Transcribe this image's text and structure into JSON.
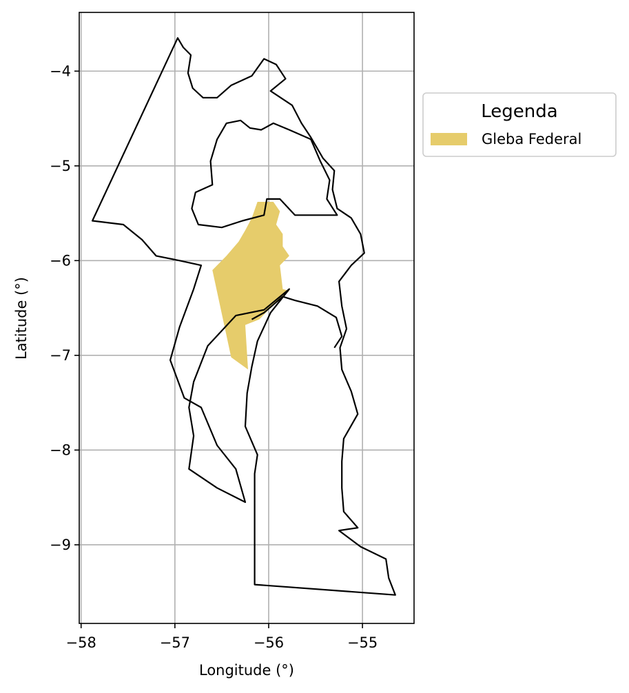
{
  "chart_data": {
    "type": "map",
    "xlabel": "Longitude (°)",
    "ylabel": "Latitude (°)",
    "xlim": [
      -58.02,
      -54.45
    ],
    "ylim": [
      -9.83,
      -3.38
    ],
    "x_ticks": [
      {
        "value": -58,
        "label": "−58"
      },
      {
        "value": -57,
        "label": "−57"
      },
      {
        "value": -56,
        "label": "−56"
      },
      {
        "value": -55,
        "label": "−55"
      }
    ],
    "y_ticks": [
      {
        "value": -4,
        "label": "−4"
      },
      {
        "value": -5,
        "label": "−5"
      },
      {
        "value": -6,
        "label": "−6"
      },
      {
        "value": -7,
        "label": "−7"
      },
      {
        "value": -8,
        "label": "−8"
      },
      {
        "value": -9,
        "label": "−9"
      }
    ],
    "grid": true,
    "legend": {
      "title": "Legenda",
      "placement": "outside-right-top",
      "entries": [
        {
          "label": "Gleba Federal",
          "color": "#e6cc6b"
        }
      ]
    },
    "layers": [
      {
        "name": "municipal boundaries",
        "color": "#000000",
        "polygons": [
          [
            [
              -56.97,
              -3.65
            ],
            [
              -56.91,
              -3.75
            ],
            [
              -56.83,
              -3.83
            ],
            [
              -56.86,
              -4.02
            ],
            [
              -56.81,
              -4.18
            ],
            [
              -56.7,
              -4.28
            ],
            [
              -56.55,
              -4.28
            ],
            [
              -56.4,
              -4.15
            ],
            [
              -56.18,
              -4.05
            ],
            [
              -56.05,
              -3.87
            ],
            [
              -55.92,
              -3.93
            ],
            [
              -55.82,
              -4.08
            ],
            [
              -55.98,
              -4.21
            ],
            [
              -55.75,
              -4.36
            ],
            [
              -55.65,
              -4.55
            ],
            [
              -55.55,
              -4.7
            ],
            [
              -55.42,
              -4.92
            ],
            [
              -55.3,
              -5.05
            ],
            [
              -55.32,
              -5.25
            ],
            [
              -55.27,
              -5.45
            ],
            [
              -55.12,
              -5.55
            ],
            [
              -55.02,
              -5.72
            ],
            [
              -54.98,
              -5.92
            ],
            [
              -55.12,
              -6.05
            ],
            [
              -55.25,
              -6.22
            ],
            [
              -55.22,
              -6.48
            ],
            [
              -55.17,
              -6.72
            ],
            [
              -55.24,
              -6.92
            ],
            [
              -55.22,
              -7.15
            ],
            [
              -55.12,
              -7.38
            ],
            [
              -55.05,
              -7.62
            ],
            [
              -55.2,
              -7.88
            ],
            [
              -55.22,
              -8.12
            ],
            [
              -55.22,
              -8.4
            ],
            [
              -55.2,
              -8.65
            ],
            [
              -55.05,
              -8.82
            ],
            [
              -55.25,
              -8.85
            ],
            [
              -55.02,
              -9.02
            ],
            [
              -54.75,
              -9.15
            ],
            [
              -54.72,
              -9.35
            ],
            [
              -54.65,
              -9.53
            ],
            [
              -56.15,
              -9.42
            ],
            [
              -56.15,
              -8.25
            ],
            [
              -56.12,
              -8.05
            ],
            [
              -56.25,
              -7.75
            ],
            [
              -56.23,
              -7.4
            ],
            [
              -56.18,
              -7.12
            ],
            [
              -56.12,
              -6.85
            ],
            [
              -55.98,
              -6.55
            ],
            [
              -55.78,
              -6.3
            ],
            [
              -56.05,
              -6.52
            ],
            [
              -56.35,
              -6.58
            ],
            [
              -56.65,
              -6.9
            ],
            [
              -56.8,
              -7.28
            ],
            [
              -56.85,
              -7.55
            ],
            [
              -56.8,
              -7.85
            ],
            [
              -56.85,
              -8.2
            ],
            [
              -56.55,
              -8.4
            ],
            [
              -56.25,
              -8.55
            ],
            [
              -56.35,
              -8.2
            ],
            [
              -56.55,
              -7.95
            ],
            [
              -56.72,
              -7.55
            ],
            [
              -56.9,
              -7.45
            ],
            [
              -57.05,
              -7.05
            ],
            [
              -56.95,
              -6.7
            ],
            [
              -56.8,
              -6.3
            ],
            [
              -56.72,
              -6.05
            ],
            [
              -56.95,
              -6.0
            ],
            [
              -57.2,
              -5.95
            ],
            [
              -57.35,
              -5.78
            ],
            [
              -57.55,
              -5.62
            ],
            [
              -57.88,
              -5.58
            ],
            [
              -56.97,
              -3.65
            ]
          ],
          [
            [
              -56.3,
              -4.52
            ],
            [
              -56.45,
              -4.55
            ],
            [
              -56.55,
              -4.72
            ],
            [
              -56.62,
              -4.95
            ],
            [
              -56.6,
              -5.2
            ],
            [
              -56.78,
              -5.28
            ],
            [
              -56.82,
              -5.45
            ],
            [
              -56.75,
              -5.62
            ],
            [
              -56.5,
              -5.65
            ],
            [
              -56.28,
              -5.58
            ],
            [
              -56.05,
              -5.52
            ],
            [
              -56.02,
              -5.35
            ],
            [
              -55.88,
              -5.35
            ],
            [
              -55.72,
              -5.52
            ],
            [
              -55.48,
              -5.52
            ],
            [
              -55.27,
              -5.52
            ],
            [
              -55.38,
              -5.35
            ],
            [
              -55.35,
              -5.15
            ],
            [
              -55.45,
              -4.95
            ],
            [
              -55.55,
              -4.72
            ],
            [
              -55.78,
              -4.62
            ],
            [
              -55.95,
              -4.55
            ],
            [
              -56.08,
              -4.62
            ],
            [
              -56.2,
              -4.6
            ],
            [
              -56.3,
              -4.52
            ]
          ],
          [
            [
              -56.18,
              -6.62
            ],
            [
              -56.05,
              -6.55
            ],
            [
              -55.85,
              -6.38
            ],
            [
              -55.72,
              -6.42
            ],
            [
              -55.48,
              -6.48
            ],
            [
              -55.28,
              -6.6
            ],
            [
              -55.22,
              -6.8
            ],
            [
              -55.3,
              -6.92
            ]
          ]
        ]
      },
      {
        "name": "Gleba Federal",
        "color": "#e6cc6b",
        "polygons": [
          [
            [
              -56.12,
              -5.38
            ],
            [
              -55.95,
              -5.38
            ],
            [
              -55.88,
              -5.48
            ],
            [
              -55.92,
              -5.62
            ],
            [
              -55.85,
              -5.72
            ],
            [
              -55.85,
              -5.85
            ],
            [
              -55.78,
              -5.95
            ],
            [
              -55.88,
              -6.05
            ],
            [
              -55.85,
              -6.3
            ],
            [
              -55.78,
              -6.32
            ],
            [
              -56.0,
              -6.52
            ],
            [
              -56.1,
              -6.62
            ],
            [
              -56.25,
              -6.68
            ],
            [
              -56.22,
              -7.15
            ],
            [
              -56.4,
              -7.02
            ],
            [
              -56.6,
              -6.1
            ],
            [
              -56.45,
              -5.95
            ],
            [
              -56.32,
              -5.8
            ],
            [
              -56.25,
              -5.68
            ],
            [
              -56.18,
              -5.55
            ],
            [
              -56.12,
              -5.38
            ]
          ]
        ]
      }
    ]
  }
}
